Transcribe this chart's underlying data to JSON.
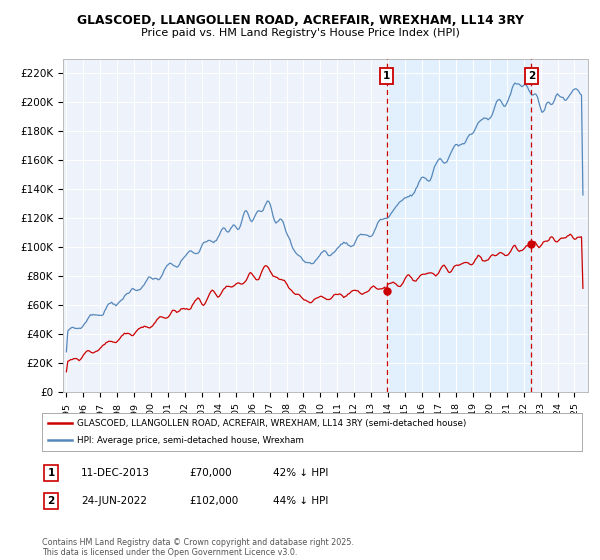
{
  "title": "GLASCOED, LLANGOLLEN ROAD, ACREFAIR, WREXHAM, LL14 3RY",
  "subtitle": "Price paid vs. HM Land Registry's House Price Index (HPI)",
  "legend_line1": "GLASCOED, LLANGOLLEN ROAD, ACREFAIR, WREXHAM, LL14 3RY (semi-detached house)",
  "legend_line2": "HPI: Average price, semi-detached house, Wrexham",
  "annotation1_date": "11-DEC-2013",
  "annotation1_price": "£70,000",
  "annotation1_hpi": "42% ↓ HPI",
  "annotation2_date": "24-JUN-2022",
  "annotation2_price": "£102,000",
  "annotation2_hpi": "44% ↓ HPI",
  "copyright": "Contains HM Land Registry data © Crown copyright and database right 2025.\nThis data is licensed under the Open Government Licence v3.0.",
  "red_color": "#cc0000",
  "blue_color": "#5588bb",
  "shade_color": "#ddeeff",
  "vline_color": "#cc0000",
  "background_color": "#ffffff",
  "plot_bg_color": "#eef2fa",
  "grid_color": "#ffffff",
  "sale1_year": 2013.92,
  "sale1_price": 70000,
  "sale2_year": 2022.46,
  "sale2_price": 102000,
  "ylim": [
    0,
    230000
  ],
  "yticks": [
    0,
    20000,
    40000,
    60000,
    80000,
    100000,
    120000,
    140000,
    160000,
    180000,
    200000,
    220000
  ],
  "xlim_left": 1994.8,
  "xlim_right": 2025.8
}
